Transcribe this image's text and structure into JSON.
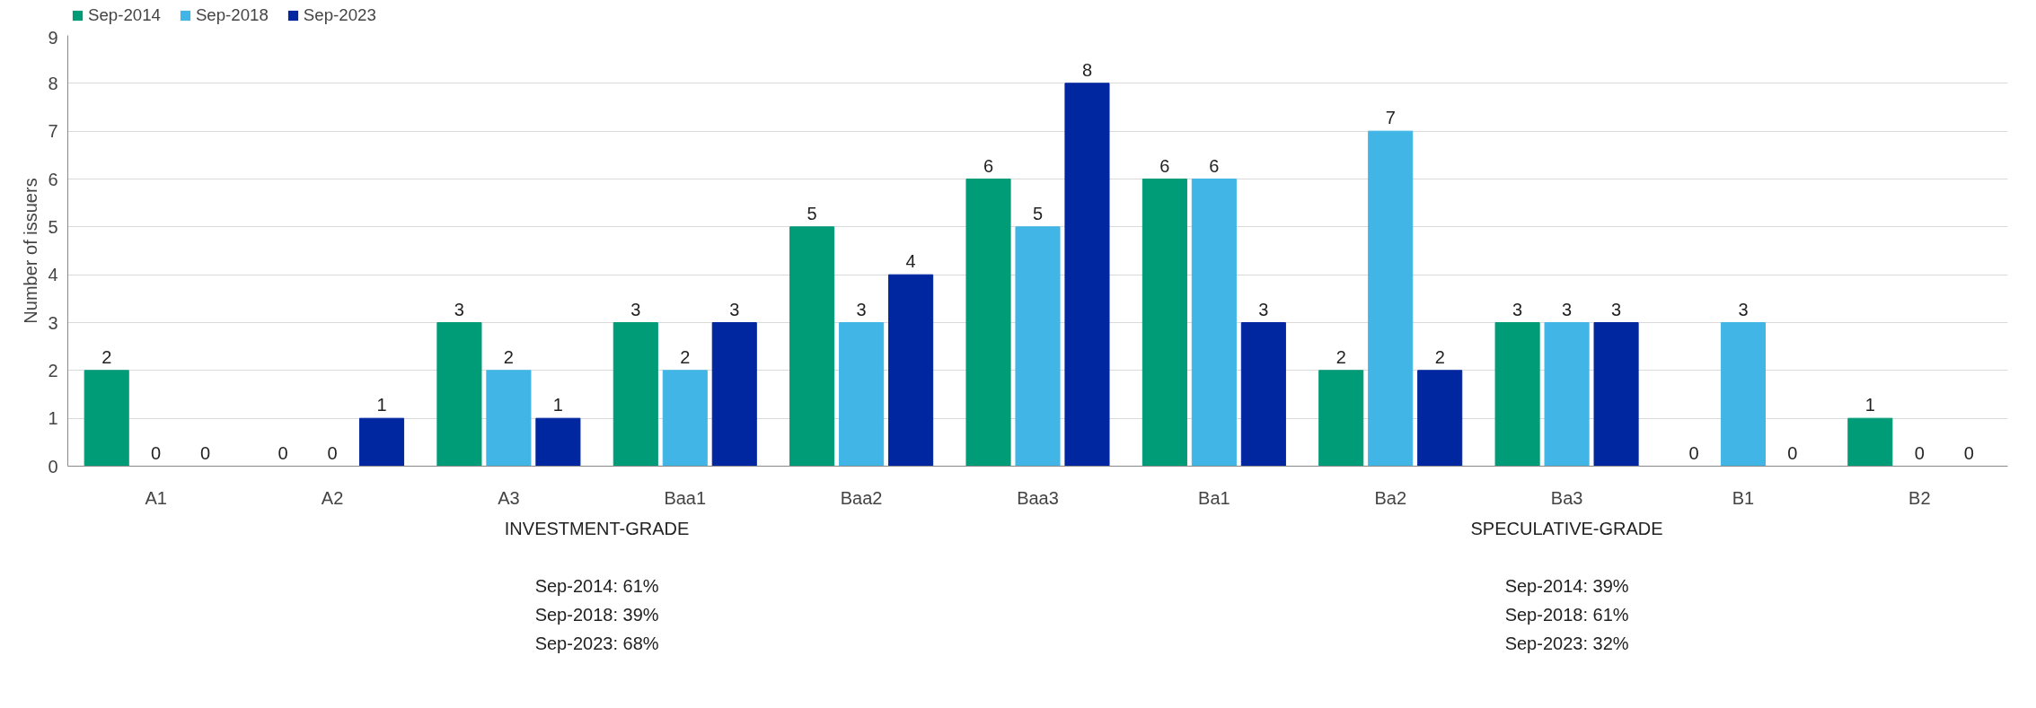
{
  "chart_data": {
    "type": "bar",
    "ylabel": "Number of issuers",
    "categories": [
      "A1",
      "A2",
      "A3",
      "Baa1",
      "Baa2",
      "Baa3",
      "Ba1",
      "Ba2",
      "Ba3",
      "B1",
      "B2"
    ],
    "series": [
      {
        "name": "Sep-2014",
        "color": "#009b77",
        "values": [
          2,
          0,
          3,
          3,
          5,
          6,
          6,
          2,
          3,
          0,
          1
        ]
      },
      {
        "name": "Sep-2018",
        "color": "#41b6e6",
        "values": [
          0,
          0,
          2,
          2,
          3,
          5,
          6,
          7,
          3,
          3,
          0
        ]
      },
      {
        "name": "Sep-2023",
        "color": "#0026a0",
        "values": [
          0,
          1,
          1,
          3,
          4,
          8,
          3,
          2,
          3,
          0,
          0
        ]
      }
    ],
    "ylim": [
      0,
      9
    ],
    "yticks": [
      0,
      1,
      2,
      3,
      4,
      5,
      6,
      7,
      8,
      9
    ],
    "grid": "y",
    "legend": "top left",
    "data_labels": true,
    "annotations": [
      "INVESTMENT-GRADE\n\nSep-2014: 61%\nSep-2018: 39%\nSep-2023: 68%",
      "SPECULATIVE-GRADE\n\nSep-2014: 39%\nSep-2018: 61%\nSep-2023: 32%"
    ]
  }
}
